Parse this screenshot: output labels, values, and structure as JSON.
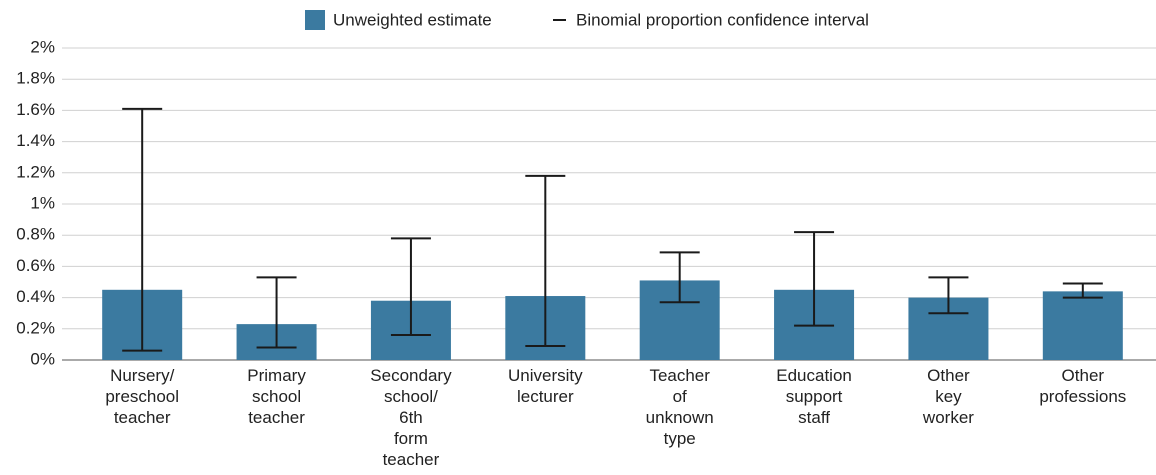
{
  "chart_data": {
    "type": "bar",
    "categories": [
      [
        "Nursery/",
        "preschool",
        "teacher"
      ],
      [
        "Primary",
        "school",
        "teacher"
      ],
      [
        "Secondary",
        "school/",
        "6th",
        "form",
        "teacher"
      ],
      [
        "University",
        "lecturer"
      ],
      [
        "Teacher",
        "of",
        "unknown",
        "type"
      ],
      [
        "Education",
        "support",
        "staff"
      ],
      [
        "Other",
        "key",
        "worker"
      ],
      [
        "Other",
        "professions"
      ]
    ],
    "series": [
      {
        "name": "Unweighted estimate",
        "color": "#3b7aa0",
        "values": [
          0.45,
          0.23,
          0.38,
          0.41,
          0.51,
          0.45,
          0.4,
          0.44
        ]
      }
    ],
    "confidence_interval": {
      "name": "Binomial proportion confidence interval",
      "color": "#1a1a1a",
      "lower": [
        0.06,
        0.08,
        0.16,
        0.09,
        0.37,
        0.22,
        0.3,
        0.4
      ],
      "upper": [
        1.61,
        0.53,
        0.78,
        1.18,
        0.69,
        0.82,
        0.53,
        0.49
      ]
    },
    "ylim": [
      0,
      2
    ],
    "yticks": [
      {
        "value": 0,
        "label": "0%"
      },
      {
        "value": 0.2,
        "label": "0.2%"
      },
      {
        "value": 0.4,
        "label": "0.4%"
      },
      {
        "value": 0.6,
        "label": "0.6%"
      },
      {
        "value": 0.8,
        "label": "0.8%"
      },
      {
        "value": 1,
        "label": "1%"
      },
      {
        "value": 1.2,
        "label": "1.2%"
      },
      {
        "value": 1.4,
        "label": "1.4%"
      },
      {
        "value": 1.6,
        "label": "1.6%"
      },
      {
        "value": 1.8,
        "label": "1.8%"
      },
      {
        "value": 2,
        "label": "2%"
      }
    ],
    "grid": true
  }
}
